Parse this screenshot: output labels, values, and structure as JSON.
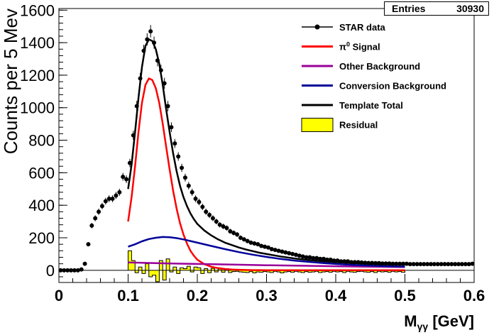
{
  "stats": {
    "entries_label": "Entries",
    "entries_value": "30930"
  },
  "chart_data": {
    "type": "line",
    "title": "",
    "ylabel": "Counts per 5 Mev",
    "xlabel_main": "M",
    "xlabel_sub": "γγ",
    "xlabel_unit": "[GeV]",
    "xlim": [
      0,
      0.6
    ],
    "ylim": [
      -75,
      1610
    ],
    "x_ticks": [
      "0",
      "0.1",
      "0.2",
      "0.3",
      "0.4",
      "0.5",
      "0.6"
    ],
    "y_ticks": [
      "0",
      "200",
      "400",
      "600",
      "800",
      "1000",
      "1200",
      "1400",
      "1600"
    ],
    "legend_position": "top-right",
    "legend": [
      {
        "label": "STAR data",
        "style": "marker",
        "color": "#000000"
      },
      {
        "label_base": "π",
        "label_sup": "0",
        "label_rest": " Signal",
        "style": "line",
        "color": "#ff0000"
      },
      {
        "label": "Other Background",
        "style": "line",
        "color": "#990099"
      },
      {
        "label": "Conversion Background",
        "style": "line",
        "color": "#000099"
      },
      {
        "label": "Template Total",
        "style": "line",
        "color": "#000000"
      },
      {
        "label": "Residual",
        "style": "box",
        "color": "#ffff00"
      }
    ],
    "series": [
      {
        "name": "STAR data",
        "color": "#000000",
        "x": [
          0.0025,
          0.0075,
          0.0125,
          0.0175,
          0.0225,
          0.0275,
          0.0325,
          0.0375,
          0.0425,
          0.0475,
          0.0525,
          0.0575,
          0.0625,
          0.0675,
          0.0725,
          0.0775,
          0.0825,
          0.0875,
          0.0925,
          0.0975,
          0.1025,
          0.1075,
          0.1125,
          0.1175,
          0.1225,
          0.1275,
          0.1325,
          0.1375,
          0.1425,
          0.1475,
          0.1525,
          0.1575,
          0.1625,
          0.1675,
          0.1725,
          0.1775,
          0.1825,
          0.1875,
          0.1925,
          0.1975,
          0.2025,
          0.2075,
          0.2125,
          0.2175,
          0.2225,
          0.2275,
          0.2325,
          0.2375,
          0.2425,
          0.2475,
          0.2525,
          0.2575,
          0.2625,
          0.2675,
          0.2725,
          0.2775,
          0.2825,
          0.2875,
          0.2925,
          0.2975,
          0.3025,
          0.3075,
          0.3125,
          0.3175,
          0.3225,
          0.3275,
          0.3325,
          0.3375,
          0.3425,
          0.3475,
          0.3525,
          0.3575,
          0.3625,
          0.3675,
          0.3725,
          0.3775,
          0.3825,
          0.3875,
          0.3925,
          0.3975,
          0.4025,
          0.4075,
          0.4125,
          0.4175,
          0.4225,
          0.4275,
          0.4325,
          0.4375,
          0.4425,
          0.4475,
          0.4525,
          0.4575,
          0.4625,
          0.4675,
          0.4725,
          0.4775,
          0.4825,
          0.4875,
          0.4925,
          0.4975,
          0.5025,
          0.5075,
          0.5125,
          0.5175,
          0.5225,
          0.5275,
          0.5325,
          0.5375,
          0.5425,
          0.5475,
          0.5525,
          0.5575,
          0.5625,
          0.5675,
          0.5725,
          0.5775,
          0.5825,
          0.5875,
          0.5925,
          0.5975
        ],
        "y": [
          0,
          0,
          0,
          0,
          0,
          0,
          5,
          40,
          160,
          275,
          320,
          360,
          395,
          425,
          440,
          440,
          460,
          480,
          575,
          560,
          660,
          830,
          1010,
          1180,
          1350,
          1420,
          1470,
          1400,
          1290,
          1230,
          1150,
          1010,
          880,
          780,
          700,
          630,
          570,
          520,
          480,
          440,
          420,
          390,
          360,
          340,
          320,
          300,
          280,
          270,
          260,
          240,
          230,
          220,
          200,
          190,
          180,
          170,
          165,
          160,
          150,
          145,
          140,
          130,
          125,
          120,
          115,
          110,
          105,
          100,
          95,
          90,
          85,
          80,
          80,
          75,
          75,
          70,
          70,
          65,
          65,
          60,
          60,
          55,
          55,
          55,
          50,
          50,
          50,
          48,
          46,
          45,
          45,
          44,
          44,
          42,
          42,
          42,
          40,
          40,
          40,
          40,
          40,
          38,
          38,
          38,
          38,
          38,
          38,
          38,
          38,
          38,
          38,
          38,
          38,
          38,
          38,
          38,
          38,
          38,
          38,
          40
        ]
      },
      {
        "name": "π0 Signal",
        "color": "#ff0000",
        "x": [
          0.1,
          0.105,
          0.11,
          0.115,
          0.12,
          0.125,
          0.13,
          0.135,
          0.14,
          0.145,
          0.15,
          0.155,
          0.16,
          0.165,
          0.17,
          0.175,
          0.18,
          0.185,
          0.19,
          0.195,
          0.2,
          0.21,
          0.22,
          0.23,
          0.24,
          0.25,
          0.26,
          0.27,
          0.28,
          0.29,
          0.3,
          0.32,
          0.34,
          0.36,
          0.38,
          0.4,
          0.45,
          0.5
        ],
        "y": [
          300,
          450,
          640,
          850,
          1030,
          1140,
          1180,
          1170,
          1120,
          1030,
          900,
          760,
          620,
          490,
          380,
          290,
          220,
          165,
          120,
          90,
          65,
          38,
          22,
          13,
          8,
          5,
          3,
          2,
          1,
          1,
          0,
          0,
          0,
          0,
          0,
          0,
          0,
          0
        ]
      },
      {
        "name": "Other Background",
        "color": "#990099",
        "x": [
          0.1,
          0.15,
          0.2,
          0.25,
          0.3,
          0.35,
          0.4,
          0.45,
          0.5
        ],
        "y": [
          48,
          43,
          39,
          35,
          31,
          28,
          25,
          22,
          20
        ]
      },
      {
        "name": "Conversion Background",
        "color": "#000099",
        "x": [
          0.1,
          0.11,
          0.12,
          0.13,
          0.14,
          0.15,
          0.16,
          0.17,
          0.18,
          0.19,
          0.2,
          0.22,
          0.24,
          0.26,
          0.28,
          0.3,
          0.32,
          0.34,
          0.36,
          0.38,
          0.4,
          0.42,
          0.44,
          0.46,
          0.48,
          0.5
        ],
        "y": [
          145,
          160,
          178,
          192,
          200,
          205,
          203,
          198,
          190,
          180,
          170,
          150,
          130,
          112,
          96,
          82,
          70,
          60,
          52,
          45,
          39,
          34,
          30,
          27,
          24,
          22
        ]
      },
      {
        "name": "Template Total",
        "color": "#000000",
        "x": [
          0.1,
          0.105,
          0.11,
          0.115,
          0.12,
          0.125,
          0.13,
          0.135,
          0.14,
          0.145,
          0.15,
          0.155,
          0.16,
          0.165,
          0.17,
          0.175,
          0.18,
          0.185,
          0.19,
          0.195,
          0.2,
          0.21,
          0.22,
          0.23,
          0.24,
          0.25,
          0.26,
          0.27,
          0.28,
          0.29,
          0.3,
          0.32,
          0.34,
          0.36,
          0.38,
          0.4,
          0.42,
          0.44,
          0.46,
          0.48,
          0.5
        ],
        "y": [
          500,
          650,
          850,
          1060,
          1250,
          1380,
          1420,
          1410,
          1360,
          1270,
          1140,
          990,
          850,
          720,
          610,
          520,
          450,
          395,
          350,
          315,
          285,
          245,
          215,
          190,
          170,
          155,
          140,
          128,
          118,
          108,
          100,
          85,
          73,
          64,
          56,
          50,
          45,
          41,
          38,
          36,
          34
        ]
      }
    ],
    "residual": {
      "name": "Residual",
      "color": "#ffff00",
      "bin_width": 0.005,
      "x": [
        0.1025,
        0.1075,
        0.1125,
        0.1175,
        0.1225,
        0.1275,
        0.1325,
        0.1375,
        0.1425,
        0.1475,
        0.1525,
        0.1575,
        0.1625,
        0.1675,
        0.1725,
        0.1775,
        0.1825,
        0.1875,
        0.1925,
        0.1975,
        0.2025,
        0.2075,
        0.2125,
        0.2175,
        0.2225,
        0.2275,
        0.2325,
        0.2375,
        0.2425,
        0.2475,
        0.2525,
        0.2575,
        0.2625,
        0.2675,
        0.2725,
        0.2775,
        0.2825,
        0.2875,
        0.2925,
        0.2975,
        0.3025,
        0.3075,
        0.3125,
        0.3175,
        0.3225,
        0.3275,
        0.3325,
        0.3375,
        0.3425,
        0.3475,
        0.3525,
        0.3575,
        0.3625,
        0.3675,
        0.3725,
        0.3775,
        0.3825,
        0.3875,
        0.3925,
        0.3975,
        0.4025,
        0.4075,
        0.4125,
        0.4175,
        0.4225,
        0.4275,
        0.4325,
        0.4375,
        0.4425,
        0.4475,
        0.4525,
        0.4575,
        0.4625,
        0.4675,
        0.4725,
        0.4775,
        0.4825,
        0.4875,
        0.4925,
        0.4975
      ],
      "y": [
        120,
        60,
        -15,
        20,
        -20,
        40,
        -40,
        -30,
        -70,
        60,
        -60,
        70,
        -10,
        20,
        -20,
        15,
        10,
        25,
        -10,
        20,
        15,
        -20,
        10,
        -15,
        12,
        -10,
        8,
        -12,
        10,
        -14,
        -8,
        -6,
        -10,
        -12,
        -14,
        -8,
        -16,
        -10,
        -12,
        -8,
        -10,
        -14,
        -6,
        -10,
        -16,
        -10,
        -8,
        -12,
        -6,
        -10,
        -14,
        -8,
        -12,
        -10,
        -6,
        -14,
        -10,
        -8,
        -12,
        -6,
        -10,
        -8,
        -14,
        -6,
        -10,
        -12,
        -8,
        -6,
        -10,
        -12,
        -8,
        -14,
        -6,
        -10,
        -8,
        -12,
        -6,
        -10,
        -8,
        -12
      ]
    }
  }
}
